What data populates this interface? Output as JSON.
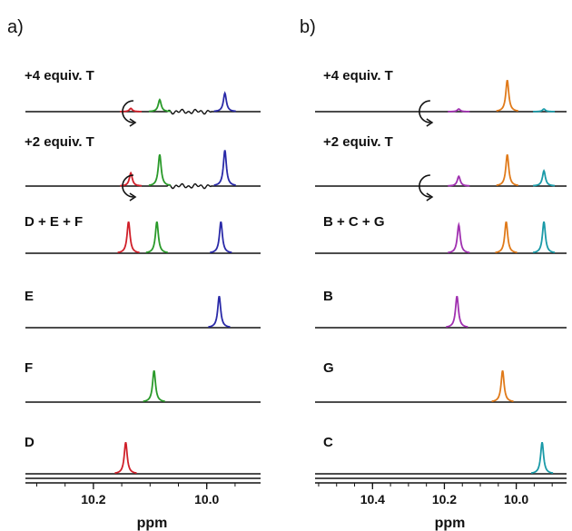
{
  "chart_data": [
    {
      "type": "line",
      "panel_label": "a)",
      "xlabel": "ppm",
      "xlim": [
        10.32,
        9.905
      ],
      "x_reversed": true,
      "xticks": [
        10.2,
        10.0
      ],
      "tick_labels": [
        "10.2",
        "10.0"
      ],
      "colors": {
        "D": "#d0202a",
        "F": "#2a9a2a",
        "E": "#2a2aa8",
        "baseline": "#111111"
      },
      "series": [
        {
          "name": "+4 equiv. T",
          "peaks": [
            {
              "component": "D",
              "ppm": 10.134,
              "height": 0.15
            },
            {
              "component": "F",
              "ppm": 10.083,
              "height": 0.55
            },
            {
              "component": "E",
              "ppm": 9.968,
              "height": 0.85
            }
          ]
        },
        {
          "name": "+2 equiv. T",
          "peaks": [
            {
              "component": "D",
              "ppm": 10.134,
              "height": 0.6
            },
            {
              "component": "F",
              "ppm": 10.083,
              "height": 1.45
            },
            {
              "component": "E",
              "ppm": 9.968,
              "height": 1.65
            }
          ]
        },
        {
          "name": "D + E + F",
          "peaks": [
            {
              "component": "D",
              "ppm": 10.138,
              "height": 1.45
            },
            {
              "component": "F",
              "ppm": 10.088,
              "height": 1.45
            },
            {
              "component": "E",
              "ppm": 9.975,
              "height": 1.45
            }
          ]
        },
        {
          "name": "E",
          "peaks": [
            {
              "component": "E",
              "ppm": 9.978,
              "height": 1.45
            }
          ]
        },
        {
          "name": "F",
          "peaks": [
            {
              "component": "F",
              "ppm": 10.093,
              "height": 1.45
            }
          ]
        },
        {
          "name": "D",
          "peaks": [
            {
              "component": "D",
              "ppm": 10.143,
              "height": 1.45
            }
          ]
        }
      ]
    },
    {
      "type": "line",
      "panel_label": "b)",
      "xlabel": "ppm",
      "xlim": [
        10.56,
        9.86
      ],
      "x_reversed": true,
      "xticks": [
        10.4,
        10.2,
        10.0
      ],
      "tick_labels": [
        "10.4",
        "10.2",
        "10.0"
      ],
      "colors": {
        "B": "#a030b0",
        "G": "#e07a1a",
        "C": "#1a9aa8",
        "baseline": "#111111"
      },
      "series": [
        {
          "name": "+4 equiv. T",
          "peaks": [
            {
              "component": "B",
              "ppm": 10.16,
              "height": 0.12
            },
            {
              "component": "G",
              "ppm": 10.025,
              "height": 1.45
            },
            {
              "component": "C",
              "ppm": 9.923,
              "height": 0.12
            }
          ]
        },
        {
          "name": "+2 equiv. T",
          "peaks": [
            {
              "component": "B",
              "ppm": 10.16,
              "height": 0.45
            },
            {
              "component": "G",
              "ppm": 10.025,
              "height": 1.45
            },
            {
              "component": "C",
              "ppm": 9.923,
              "height": 0.7
            }
          ]
        },
        {
          "name": "B + C + G",
          "peaks": [
            {
              "component": "B",
              "ppm": 10.16,
              "height": 1.3
            },
            {
              "component": "G",
              "ppm": 10.028,
              "height": 1.45
            },
            {
              "component": "C",
              "ppm": 9.923,
              "height": 1.45
            }
          ]
        },
        {
          "name": "B",
          "peaks": [
            {
              "component": "B",
              "ppm": 10.165,
              "height": 1.45
            }
          ]
        },
        {
          "name": "G",
          "peaks": [
            {
              "component": "G",
              "ppm": 10.038,
              "height": 1.45
            }
          ]
        },
        {
          "name": "C",
          "peaks": [
            {
              "component": "C",
              "ppm": 9.928,
              "height": 1.45
            }
          ]
        }
      ]
    }
  ]
}
